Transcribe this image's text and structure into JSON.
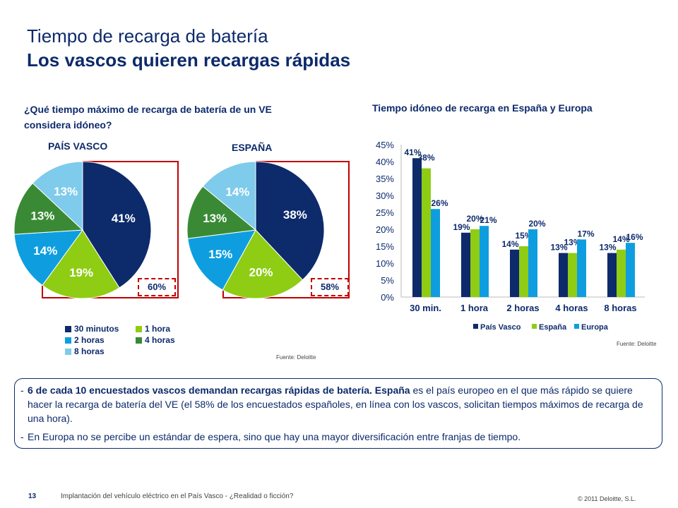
{
  "title": {
    "line1": "Tiempo de recarga de batería",
    "line2": "Los vascos quieren recargas rápidas"
  },
  "question": "¿Qué tiempo máximo de recarga de batería de un VE considera idóneo?",
  "pies": {
    "pais_vasco": {
      "label": "PAÍS VASCO",
      "box": "60%",
      "slices": [
        {
          "value": 41,
          "label": "41%"
        },
        {
          "value": 19,
          "label": "19%"
        },
        {
          "value": 14,
          "label": "14%"
        },
        {
          "value": 13,
          "label": "13%"
        },
        {
          "value": 13,
          "label": "13%"
        }
      ]
    },
    "espana": {
      "label": "ESPAÑA",
      "box": "58%",
      "slices": [
        {
          "value": 38,
          "label": "38%"
        },
        {
          "value": 20,
          "label": "20%"
        },
        {
          "value": 15,
          "label": "15%"
        },
        {
          "value": 13,
          "label": "13%"
        },
        {
          "value": 14,
          "label": "14%"
        }
      ]
    }
  },
  "pie_legend": [
    {
      "label": "30 minutos",
      "color": "#0d2a6b"
    },
    {
      "label": "1 hora",
      "color": "#8fcc14"
    },
    {
      "label": "2 horas",
      "color": "#0e9ee0"
    },
    {
      "label": "4 horas",
      "color": "#3a8a35"
    },
    {
      "label": "8 horas",
      "color": "#7fcbeb"
    }
  ],
  "source_left": "Fuente: Deloitte",
  "source_right": "Fuente: Deloitte",
  "chart_data": {
    "type": "bar",
    "title": "Tiempo idóneo de recarga en España y Europa",
    "categories": [
      "30 min.",
      "1 hora",
      "2 horas",
      "4 horas",
      "8 horas"
    ],
    "series": [
      {
        "name": "País Vasco",
        "values": [
          41,
          19,
          14,
          13,
          13
        ],
        "color": "#0d2a6b"
      },
      {
        "name": "España",
        "values": [
          38,
          20,
          15,
          13,
          14
        ],
        "color": "#8fcc14"
      },
      {
        "name": "Europa",
        "values": [
          26,
          21,
          20,
          17,
          16
        ],
        "color": "#0e9ee0"
      }
    ],
    "ylim": [
      0,
      45
    ],
    "yticks": [
      "0%",
      "5%",
      "10%",
      "15%",
      "20%",
      "25%",
      "30%",
      "35%",
      "40%",
      "45%"
    ],
    "legend_position": "bottom"
  },
  "summary": {
    "b1_bold": "6 de cada 10 encuestados vascos demandan recargas rápidas de batería. España",
    "b1_rest": " es el país europeo en el que más rápido se quiere hacer la recarga de batería del VE (el 58% de los encuestados españoles, en línea con los vascos, solicitan tiempos máximos de recarga de una hora).",
    "b2": "En Europa no se percibe un estándar de espera, sino que hay una mayor diversificación entre franjas de tiempo."
  },
  "footer": {
    "page": "13",
    "text": "Implantación del vehículo eléctrico en el País Vasco - ¿Realidad o ficción?",
    "copyright": "© 2011 Deloitte, S.L."
  }
}
